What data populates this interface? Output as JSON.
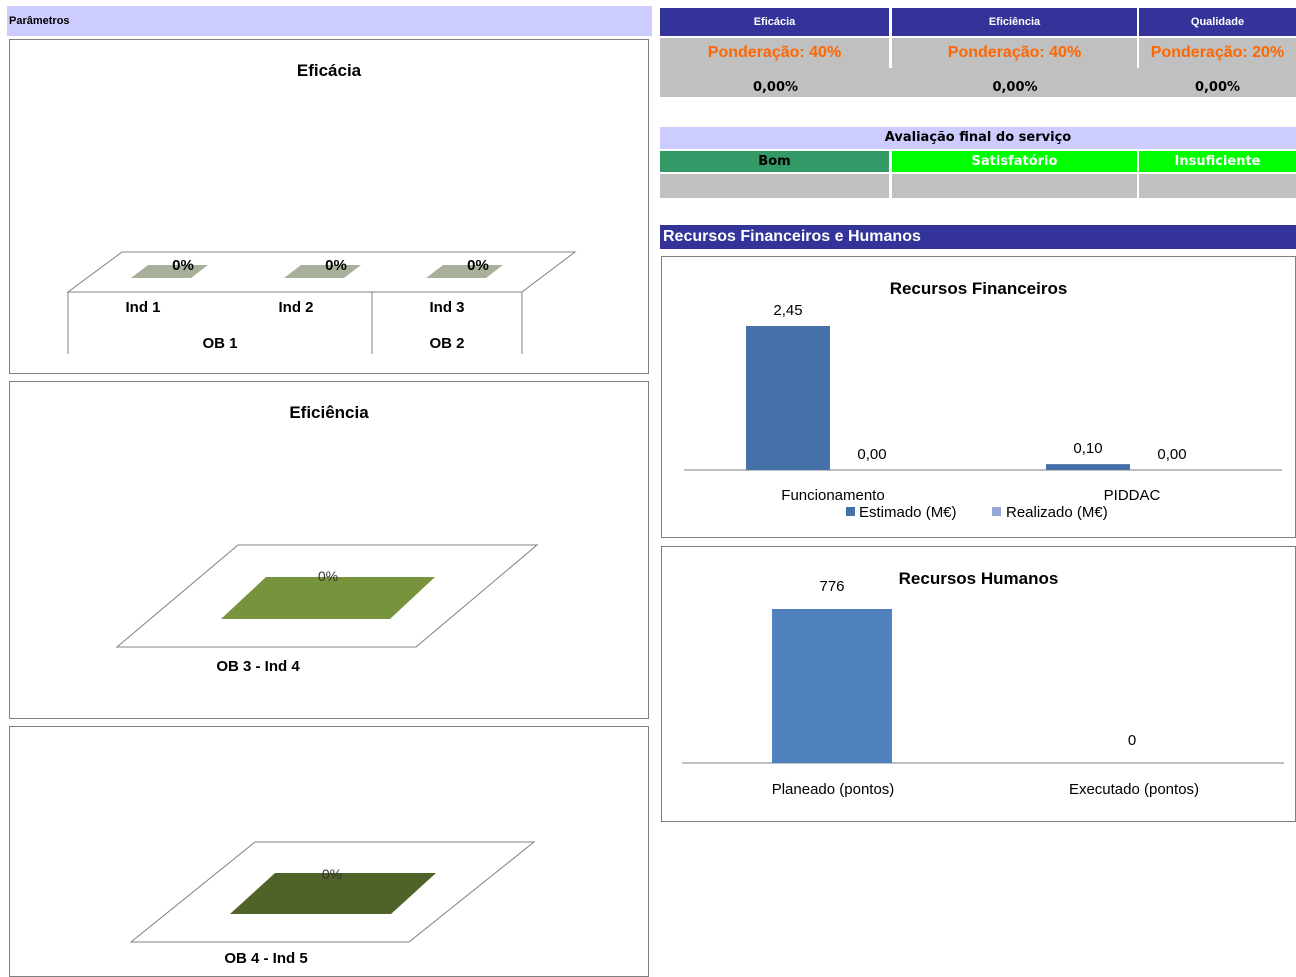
{
  "params": {
    "label": "Parâmetros"
  },
  "summary": {
    "headers": [
      "Eficácia",
      "Eficiência",
      "Qualidade"
    ],
    "ponderacao": [
      "Ponderação: 40%",
      "Ponderação: 40%",
      "Ponderação: 20%"
    ],
    "values": [
      "0,00%",
      "0,00%",
      "0,00%"
    ]
  },
  "avaliacao": {
    "title": "Avaliação final do serviço",
    "bom": "Bom",
    "satisfatorio": "Satisfatório",
    "insuficiente": "Insuficiente"
  },
  "recursos_header": "Recursos Financeiros e Humanos",
  "colors": {
    "header_blue": "#333399",
    "lavender": "#ccccff",
    "orange": "#ff6600",
    "bom_green": "#339966",
    "bright_green": "#00ff00",
    "estimado": "#4472a8",
    "realizado": "#94a9d4",
    "planeado": "#4f81bd",
    "olive": "#77933c",
    "dark_olive": "#4f6228",
    "grey_olive": "#a8b09b"
  },
  "chart_data": [
    {
      "type": "bar",
      "title": "Eficácia",
      "categories": [
        "Ind 1",
        "Ind 2",
        "Ind 3"
      ],
      "groups": [
        {
          "name": "OB 1",
          "categories": [
            "Ind 1",
            "Ind 2"
          ]
        },
        {
          "name": "OB 2",
          "categories": [
            "Ind 3"
          ]
        }
      ],
      "values": [
        0,
        0,
        0
      ],
      "data_labels": [
        "0%",
        "0%",
        "0%"
      ],
      "style": "3d"
    },
    {
      "type": "bar",
      "title": "Eficiência",
      "categories": [
        "OB 3 - Ind 4"
      ],
      "values": [
        0
      ],
      "data_labels": [
        "0%"
      ],
      "style": "3d"
    },
    {
      "type": "bar",
      "title": "",
      "categories": [
        "OB 4 - Ind 5"
      ],
      "values": [
        0
      ],
      "data_labels": [
        "0%"
      ],
      "style": "3d"
    },
    {
      "type": "bar",
      "title": "Recursos Financeiros",
      "categories": [
        "Funcionamento",
        "PIDDAC"
      ],
      "series": [
        {
          "name": "Estimado (M€)",
          "values": [
            2.45,
            0.1
          ],
          "labels": [
            "2,45",
            "0,10"
          ]
        },
        {
          "name": "Realizado (M€)",
          "values": [
            0.0,
            0.0
          ],
          "labels": [
            "0,00",
            "0,00"
          ]
        }
      ],
      "legend": "bottom",
      "ylim": [
        0,
        2.45
      ]
    },
    {
      "type": "bar",
      "title": "Recursos Humanos",
      "categories": [
        "Planeado (pontos)",
        "Executado (pontos)"
      ],
      "values": [
        776,
        0
      ],
      "labels": [
        "776",
        "0"
      ],
      "ylim": [
        0,
        776
      ]
    }
  ]
}
